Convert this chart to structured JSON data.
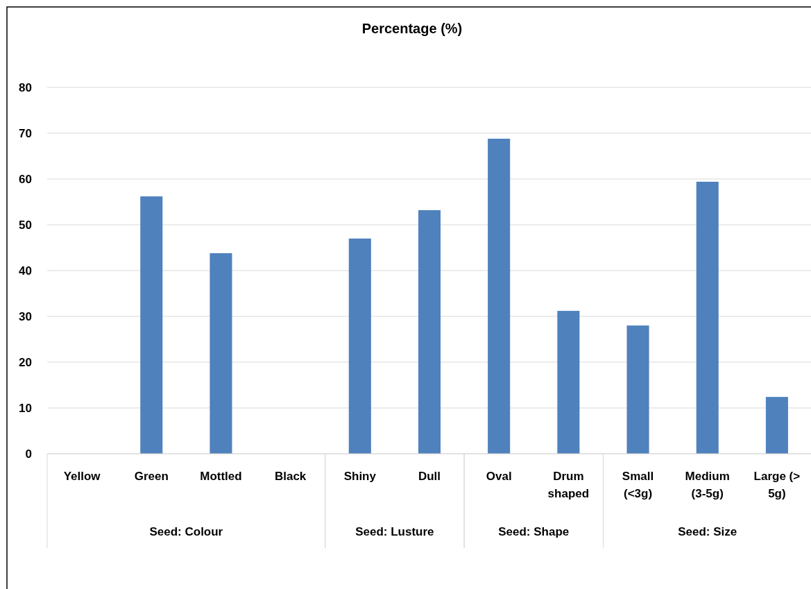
{
  "chart_data": {
    "type": "bar",
    "title": "Percentage (%)",
    "categories": [
      "Yellow",
      "Green",
      "Mottled",
      "Black",
      "Shiny",
      "Dull",
      "Oval",
      "Drum shaped",
      "Small (<3g)",
      "Medium (3-5g)",
      "Large (> 5g)"
    ],
    "values": [
      0,
      56.2,
      43.8,
      0,
      47.0,
      53.2,
      68.8,
      31.2,
      28.0,
      59.4,
      12.4
    ],
    "color": "#4f81bd",
    "ylim": [
      0,
      80
    ],
    "yticks": [
      0,
      10,
      20,
      30,
      40,
      50,
      60,
      70,
      80
    ],
    "grid": "y",
    "annotations": [
      "Seed: Colour",
      "Seed: Lusture",
      "Seed: Shape",
      "Seed: Size"
    ]
  }
}
